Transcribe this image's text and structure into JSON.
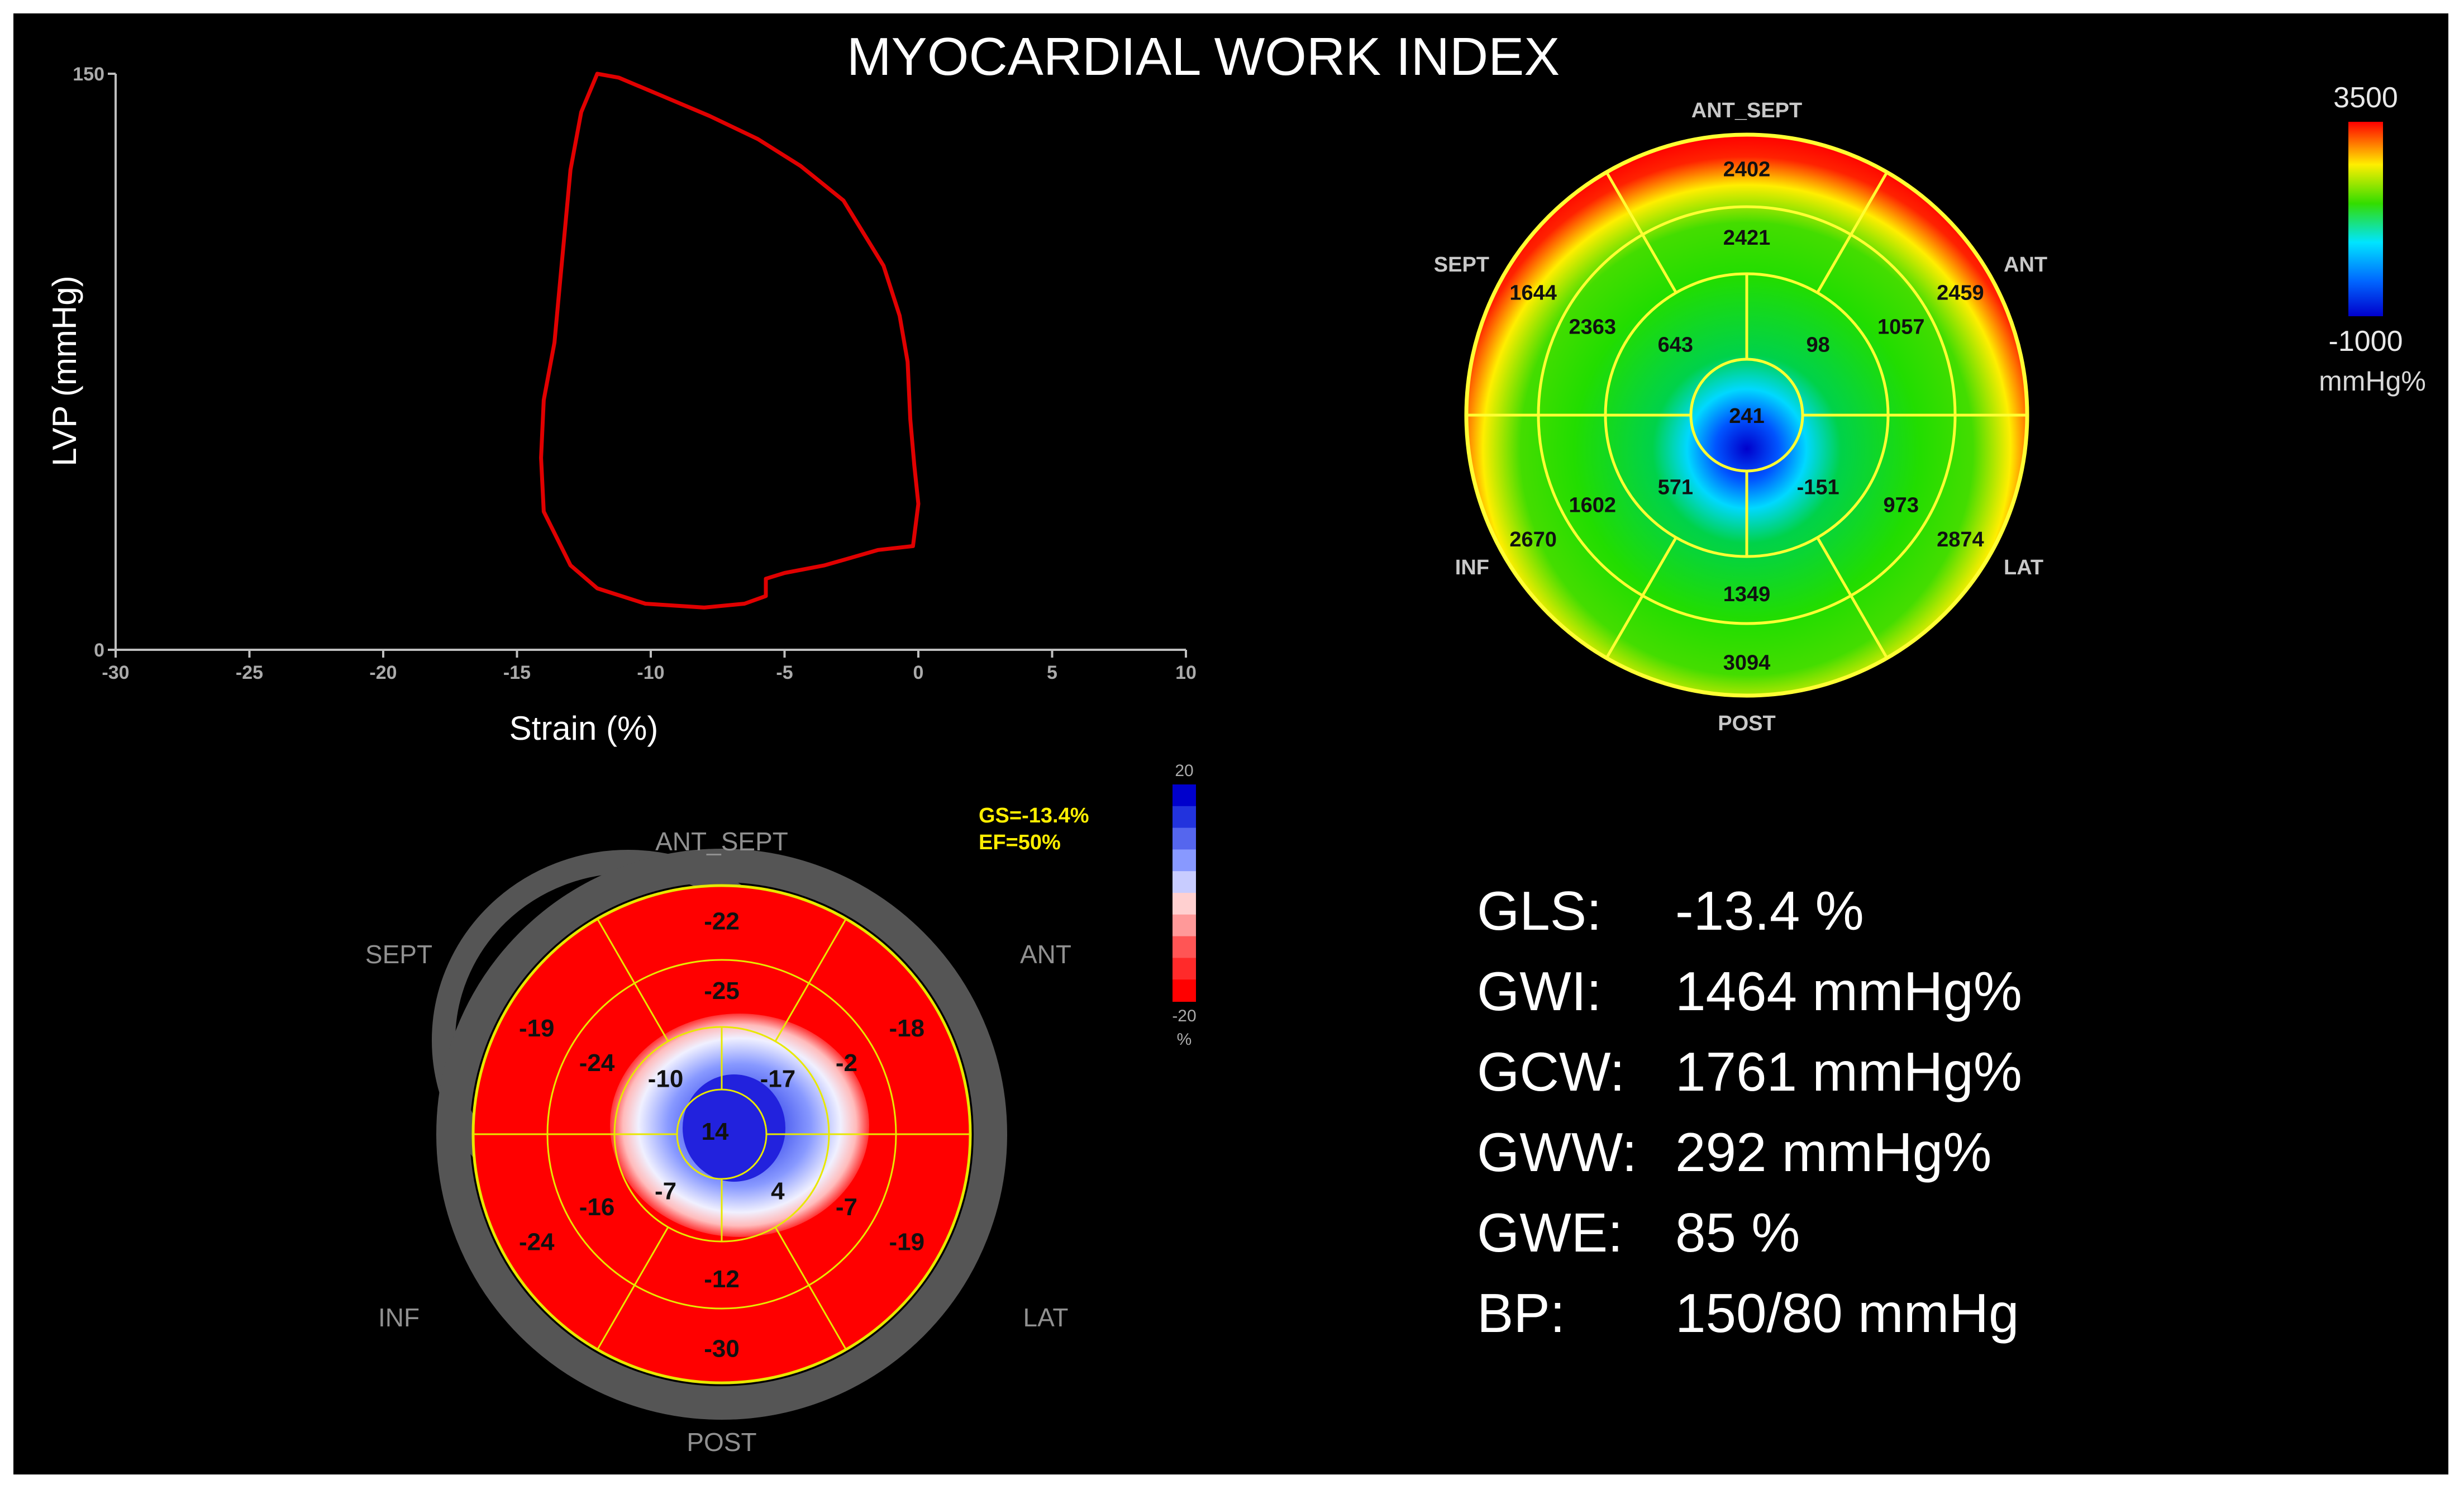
{
  "title": "MYOCARDIAL WORK INDEX",
  "pv_loop": {
    "chart_data": {
      "type": "line",
      "xlabel": "Strain (%)",
      "ylabel": "LVP (mmHg)",
      "xlim": [
        -30,
        10
      ],
      "ylim": [
        0,
        150
      ],
      "x_ticks": [
        "-30",
        "-25",
        "-20",
        "-15",
        "-10",
        "-5",
        "0",
        "5",
        "10"
      ],
      "y_ticks": [
        "0",
        "150"
      ],
      "series": [
        {
          "color": "#e00000",
          "points": [
            [
              -12.0,
              150
            ],
            [
              -11.2,
              149
            ],
            [
              -9.5,
              144
            ],
            [
              -7.8,
              139
            ],
            [
              -6.0,
              133
            ],
            [
              -4.4,
              126
            ],
            [
              -2.8,
              117
            ],
            [
              -1.3,
              100
            ],
            [
              -0.7,
              87
            ],
            [
              -0.4,
              75
            ],
            [
              -0.3,
              60
            ],
            [
              -0.15,
              48
            ],
            [
              0.0,
              38
            ],
            [
              -0.2,
              27
            ],
            [
              -1.5,
              26
            ],
            [
              -3.5,
              22
            ],
            [
              -5.0,
              20
            ],
            [
              -5.7,
              18.5
            ],
            [
              -5.7,
              14
            ],
            [
              -6.5,
              12
            ],
            [
              -8.0,
              11
            ],
            [
              -10.2,
              12
            ],
            [
              -12.0,
              16
            ],
            [
              -13.0,
              22
            ],
            [
              -14.0,
              36
            ],
            [
              -14.1,
              50
            ],
            [
              -14.0,
              65
            ],
            [
              -13.6,
              80
            ],
            [
              -13.4,
              95
            ],
            [
              -13.2,
              110
            ],
            [
              -13.0,
              125
            ],
            [
              -12.6,
              140
            ],
            [
              -12.0,
              150
            ]
          ]
        }
      ]
    }
  },
  "work_bullseye": {
    "chart_data": {
      "type": "heatmap",
      "regions": {
        "ant_sept": "ANT_SEPT",
        "ant": "ANT",
        "lat": "LAT",
        "post": "POST",
        "inf": "INF",
        "sept": "SEPT"
      },
      "basal": [
        "2402",
        "2459",
        "2874",
        "3094",
        "2670",
        "1644"
      ],
      "mid": [
        "2421",
        "1057",
        "973",
        "1349",
        "1602",
        "2363"
      ],
      "apical": [
        "643",
        "98",
        "-151",
        "571"
      ],
      "apex": "241",
      "basal_values": [
        2402,
        2459,
        2874,
        3094,
        2670,
        1644
      ],
      "mid_values": [
        2421,
        1057,
        973,
        1349,
        1602,
        2363
      ],
      "apical_values": [
        643,
        98,
        -151,
        571
      ],
      "apex_value": 241,
      "color_scale": {
        "max_label": "3500",
        "min_label": "-1000",
        "unit": "mmHg%",
        "max": 3500,
        "min": -1000,
        "colors": [
          "#0000cc",
          "#0066ff",
          "#00e5ff",
          "#00cc44",
          "#33dd00",
          "#ffee00",
          "#ff0000"
        ]
      }
    }
  },
  "strain_bullseye": {
    "chart_data": {
      "type": "heatmap",
      "regions": {
        "ant_sept": "ANT_SEPT",
        "ant": "ANT",
        "lat": "LAT",
        "post": "POST",
        "inf": "INF",
        "sept": "SEPT"
      },
      "basal": [
        "-22",
        "-18",
        "-19",
        "-30",
        "-24",
        "-19"
      ],
      "mid": [
        "-25",
        "-2",
        "-7",
        "-12",
        "-16",
        "-24"
      ],
      "apical": [
        "-10",
        "-17",
        "4",
        "-7"
      ],
      "apex": "14",
      "gs": "GS=-13.4%",
      "ef": "EF=50%",
      "color_scale": {
        "max_label": "20",
        "min_label": "-20",
        "unit": "%",
        "colors": [
          "#0000cc",
          "#2233dd",
          "#5566ee",
          "#8899ff",
          "#c8ccff",
          "#ffd0d0",
          "#ff9999",
          "#ff5555",
          "#ff2a2a",
          "#ff0000"
        ]
      }
    }
  },
  "stats": [
    {
      "label": "GLS:",
      "value": "-13.4 %"
    },
    {
      "label": "GWI:",
      "value": "1464 mmHg%"
    },
    {
      "label": "GCW:",
      "value": "1761 mmHg%"
    },
    {
      "label": "GWW:",
      "value": "292 mmHg%"
    },
    {
      "label": "GWE:",
      "value": "85 %"
    },
    {
      "label": "BP:",
      "value": "150/80 mmHg"
    }
  ]
}
